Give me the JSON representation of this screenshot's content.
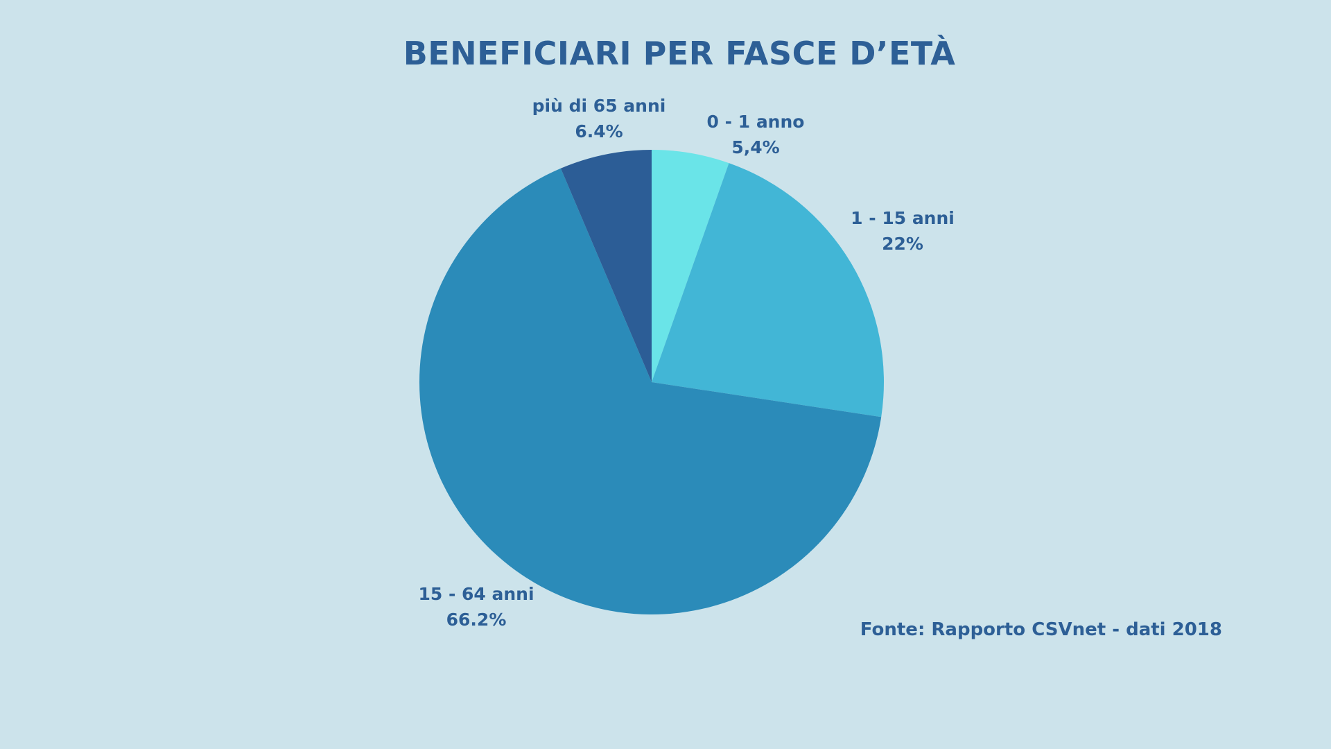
{
  "chart_data": {
    "type": "pie",
    "title": "BENEFICIARI PER FASCE D’ETÀ",
    "slices": [
      {
        "label": "0 - 1 anno",
        "value": 5.4,
        "value_label": "5,4%",
        "color": "#6ae4e8"
      },
      {
        "label": "1 - 15 anni",
        "value": 22,
        "value_label": "22%",
        "color": "#42b6d6"
      },
      {
        "label": "15 - 64 anni",
        "value": 66.2,
        "value_label": "66.2%",
        "color": "#2b8bb9"
      },
      {
        "label": "più di 65 anni",
        "value": 6.4,
        "value_label": "6.4%",
        "color": "#2c5d96"
      }
    ],
    "start": "top",
    "direction": "clockwise",
    "source": "Fonte: Rapporto CSVnet - dati 2018"
  },
  "colors": {
    "background": "#cce3eb",
    "text": "#2d5f96"
  }
}
